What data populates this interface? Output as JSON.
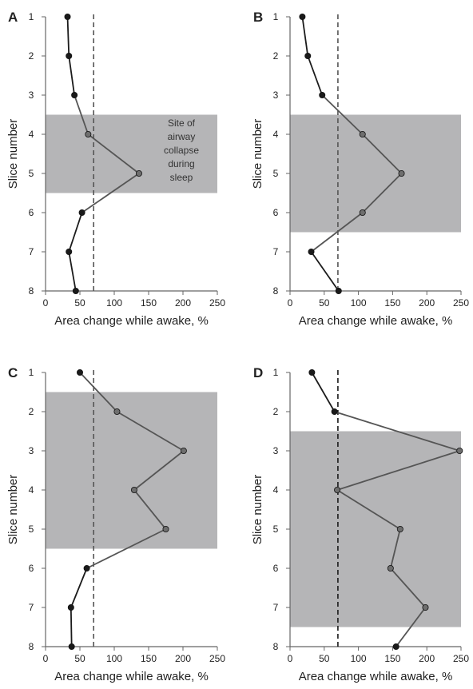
{
  "chart_data": [
    {
      "panel": "A",
      "type": "line",
      "orientation": "vertical",
      "xlabel": "Area change while awake, %",
      "ylabel": "Slice number",
      "xlim": [
        0,
        250
      ],
      "ylim": [
        1,
        8
      ],
      "y_inverted": true,
      "xticks": [
        "0",
        "50",
        "100",
        "150",
        "200",
        "250"
      ],
      "yticks": [
        "1",
        "2",
        "3",
        "4",
        "5",
        "6",
        "7",
        "8"
      ],
      "reference_line_x": 70,
      "collapse_region": [
        3.5,
        5.5
      ],
      "annotation": [
        "Site of",
        "airway",
        "collapse",
        "during",
        "sleep"
      ],
      "points": [
        {
          "slice": 1,
          "value": 32
        },
        {
          "slice": 2,
          "value": 34
        },
        {
          "slice": 3,
          "value": 42
        },
        {
          "slice": 4,
          "value": 62
        },
        {
          "slice": 5,
          "value": 136
        },
        {
          "slice": 6,
          "value": 53
        },
        {
          "slice": 7,
          "value": 34
        },
        {
          "slice": 8,
          "value": 44
        }
      ]
    },
    {
      "panel": "B",
      "type": "line",
      "orientation": "vertical",
      "xlabel": "Area change while awake, %",
      "ylabel": "Slice number",
      "xlim": [
        0,
        250
      ],
      "ylim": [
        1,
        8
      ],
      "y_inverted": true,
      "xticks": [
        "0",
        "50",
        "100",
        "150",
        "200",
        "250"
      ],
      "yticks": [
        "1",
        "2",
        "3",
        "4",
        "5",
        "6",
        "7",
        "8"
      ],
      "reference_line_x": 70,
      "collapse_region": [
        3.5,
        6.5
      ],
      "annotation": [],
      "points": [
        {
          "slice": 1,
          "value": 18
        },
        {
          "slice": 2,
          "value": 26
        },
        {
          "slice": 3,
          "value": 47
        },
        {
          "slice": 4,
          "value": 106
        },
        {
          "slice": 5,
          "value": 163
        },
        {
          "slice": 6,
          "value": 106
        },
        {
          "slice": 7,
          "value": 31
        },
        {
          "slice": 8,
          "value": 71
        }
      ]
    },
    {
      "panel": "C",
      "type": "line",
      "orientation": "vertical",
      "xlabel": "Area change while awake, %",
      "ylabel": "Slice number",
      "xlim": [
        0,
        250
      ],
      "ylim": [
        1,
        8
      ],
      "y_inverted": true,
      "xticks": [
        "0",
        "50",
        "100",
        "150",
        "200",
        "250"
      ],
      "yticks": [
        "1",
        "2",
        "3",
        "4",
        "5",
        "6",
        "7",
        "8"
      ],
      "reference_line_x": 70,
      "collapse_region": [
        1.5,
        5.5
      ],
      "annotation": [],
      "points": [
        {
          "slice": 1,
          "value": 50
        },
        {
          "slice": 2,
          "value": 104
        },
        {
          "slice": 3,
          "value": 201
        },
        {
          "slice": 4,
          "value": 129
        },
        {
          "slice": 5,
          "value": 175
        },
        {
          "slice": 6,
          "value": 60
        },
        {
          "slice": 7,
          "value": 37
        },
        {
          "slice": 8,
          "value": 38
        }
      ]
    },
    {
      "panel": "D",
      "type": "line",
      "orientation": "vertical",
      "xlabel": "Area change while awake, %",
      "ylabel": "Slice number",
      "xlim": [
        0,
        250
      ],
      "ylim": [
        1,
        8
      ],
      "y_inverted": true,
      "xticks": [
        "0",
        "50",
        "100",
        "150",
        "200",
        "250"
      ],
      "yticks": [
        "1",
        "2",
        "3",
        "4",
        "5",
        "6",
        "7",
        "8"
      ],
      "reference_line_x": 70,
      "collapse_region": [
        2.5,
        7.5
      ],
      "annotation": [],
      "points": [
        {
          "slice": 1,
          "value": 32
        },
        {
          "slice": 2,
          "value": 65
        },
        {
          "slice": 3,
          "value": 248
        },
        {
          "slice": 4,
          "value": 69
        },
        {
          "slice": 5,
          "value": 161
        },
        {
          "slice": 6,
          "value": 147
        },
        {
          "slice": 7,
          "value": 198
        },
        {
          "slice": 8,
          "value": 155
        }
      ]
    }
  ],
  "colors": {
    "collapse_region": "#b5b5b7",
    "line_outside": "#1b1b1b",
    "line_inside": "#555555",
    "marker_outside": "#1a1a1a",
    "marker_inside": "#6e6e6e",
    "reference_line": "#555555",
    "axis": "#666666",
    "text": "#222222"
  }
}
